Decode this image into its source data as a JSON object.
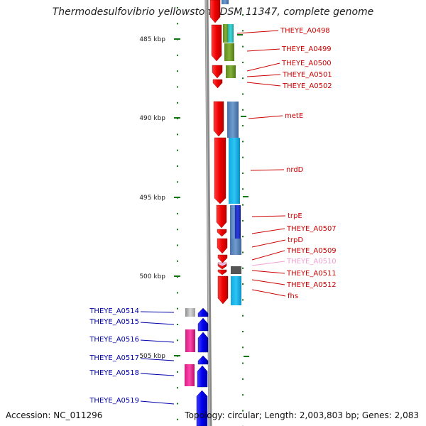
{
  "title": "Thermodesulfovibrio yellowstonii DSM 11347, complete genome",
  "footer": {
    "accession": "Accession: NC_011296",
    "topology": "Topology: circular; Length: 2,003,803 bp; Genes: 2,083"
  },
  "axis": {
    "ticks": [
      {
        "label": "485 kbp",
        "kbp": 485
      },
      {
        "label": "490 kbp",
        "kbp": 490
      },
      {
        "label": "495 kbp",
        "kbp": 495
      },
      {
        "label": "500 kbp",
        "kbp": 500
      },
      {
        "label": "505 kbp",
        "kbp": 505
      }
    ]
  },
  "genes_right": [
    {
      "label": "THEYE_A0498",
      "color": "#cc0000"
    },
    {
      "label": "THEYE_A0499",
      "color": "#cc0000"
    },
    {
      "label": "THEYE_A0500",
      "color": "#cc0000"
    },
    {
      "label": "THEYE_A0501",
      "color": "#cc0000"
    },
    {
      "label": "THEYE_A0502",
      "color": "#cc0000"
    },
    {
      "label": "metE",
      "color": "#cc0000"
    },
    {
      "label": "nrdD",
      "color": "#cc0000"
    },
    {
      "label": "trpE",
      "color": "#cc0000"
    },
    {
      "label": "THEYE_A0507",
      "color": "#cc0000"
    },
    {
      "label": "trpD",
      "color": "#cc0000"
    },
    {
      "label": "THEYE_A0509",
      "color": "#cc0000"
    },
    {
      "label": "THEYE_A0510",
      "color": "#f0a0d0"
    },
    {
      "label": "THEYE_A0511",
      "color": "#cc0000"
    },
    {
      "label": "THEYE_A0512",
      "color": "#cc0000"
    },
    {
      "label": "fhs",
      "color": "#cc0000"
    }
  ],
  "genes_left": [
    {
      "label": "THEYE_A0514",
      "color": "#0000aa"
    },
    {
      "label": "THEYE_A0515",
      "color": "#0000aa"
    },
    {
      "label": "THEYE_A0516",
      "color": "#0000aa"
    },
    {
      "label": "THEYE_A0517",
      "color": "#0000aa"
    },
    {
      "label": "THEYE_A0518",
      "color": "#0000aa"
    },
    {
      "label": "THEYE_A0519",
      "color": "#0000aa"
    }
  ]
}
